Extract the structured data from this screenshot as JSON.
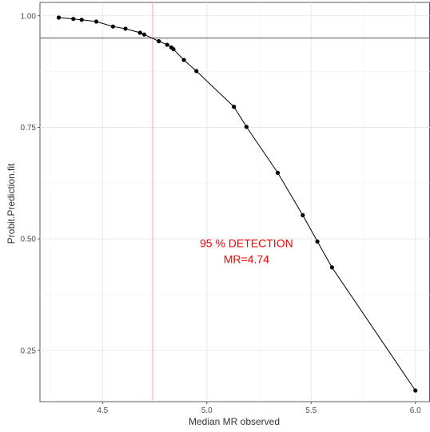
{
  "chart_data": {
    "type": "scatter",
    "xlabel": "Median MR observed",
    "ylabel": "Probit.Prediction.fit",
    "xlim": [
      4.2,
      6.07
    ],
    "ylim": [
      0.135,
      1.03
    ],
    "x_ticks": [
      4.5,
      5.0,
      5.5,
      6.0
    ],
    "x_tick_labels": [
      "4.5",
      "5.0",
      "5.5",
      "6.0"
    ],
    "y_ticks": [
      0.25,
      0.5,
      0.75,
      1.0
    ],
    "y_tick_labels": [
      "0.25",
      "0.50",
      "0.75",
      "1.00"
    ],
    "grid": true,
    "points": [
      {
        "x": 4.29,
        "y": 0.996
      },
      {
        "x": 4.36,
        "y": 0.993
      },
      {
        "x": 4.4,
        "y": 0.991
      },
      {
        "x": 4.47,
        "y": 0.987
      },
      {
        "x": 4.55,
        "y": 0.976
      },
      {
        "x": 4.61,
        "y": 0.971
      },
      {
        "x": 4.68,
        "y": 0.962
      },
      {
        "x": 4.7,
        "y": 0.958
      },
      {
        "x": 4.77,
        "y": 0.943
      },
      {
        "x": 4.81,
        "y": 0.935
      },
      {
        "x": 4.83,
        "y": 0.929
      },
      {
        "x": 4.84,
        "y": 0.925
      },
      {
        "x": 4.89,
        "y": 0.901
      },
      {
        "x": 4.95,
        "y": 0.876
      },
      {
        "x": 5.13,
        "y": 0.796
      },
      {
        "x": 5.19,
        "y": 0.751
      },
      {
        "x": 5.34,
        "y": 0.648
      },
      {
        "x": 5.46,
        "y": 0.553
      },
      {
        "x": 5.53,
        "y": 0.494
      },
      {
        "x": 5.6,
        "y": 0.436
      },
      {
        "x": 6.0,
        "y": 0.16
      }
    ],
    "hline": {
      "y": 0.95,
      "color": "#666666"
    },
    "vline": {
      "x": 4.74,
      "color": "#ffb3b3"
    },
    "annotation": {
      "lines": [
        "95 % DETECTION",
        "MR=4.74"
      ],
      "x": 5.19,
      "y": 0.465,
      "color": "#ff0000"
    }
  }
}
